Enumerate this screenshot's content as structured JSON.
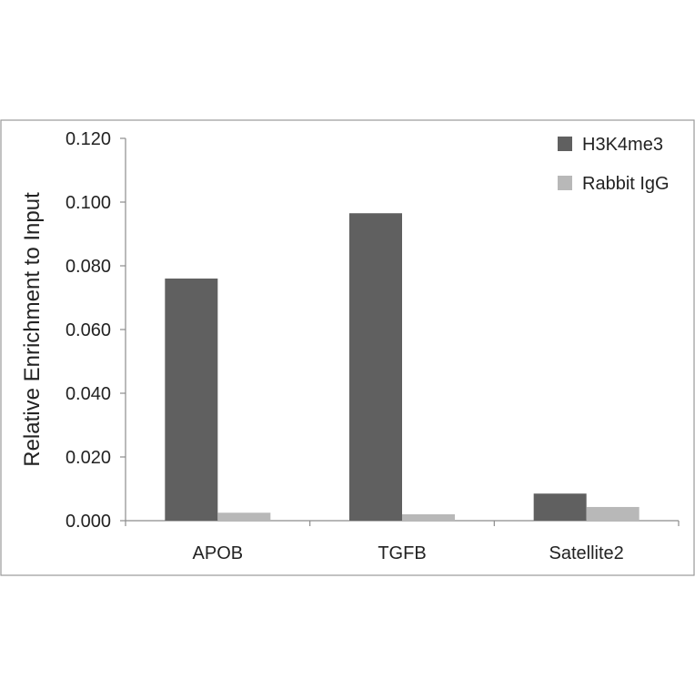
{
  "chart_data": {
    "type": "bar",
    "title": "",
    "xlabel": "",
    "ylabel": "Relative Enrichment to Input",
    "categories": [
      "APOB",
      "TGFB",
      "Satellite2"
    ],
    "series": [
      {
        "name": "H3K4me3",
        "color": "#606060",
        "values": [
          0.076,
          0.0965,
          0.0085
        ]
      },
      {
        "name": "Rabbit IgG",
        "color": "#b8b8b8",
        "values": [
          0.0025,
          0.002,
          0.0043
        ]
      }
    ],
    "ylim": [
      0,
      0.12
    ],
    "yticks": [
      "0.000",
      "0.020",
      "0.040",
      "0.060",
      "0.080",
      "0.100",
      "0.120"
    ],
    "grid": false,
    "legend_position": "top-right"
  }
}
